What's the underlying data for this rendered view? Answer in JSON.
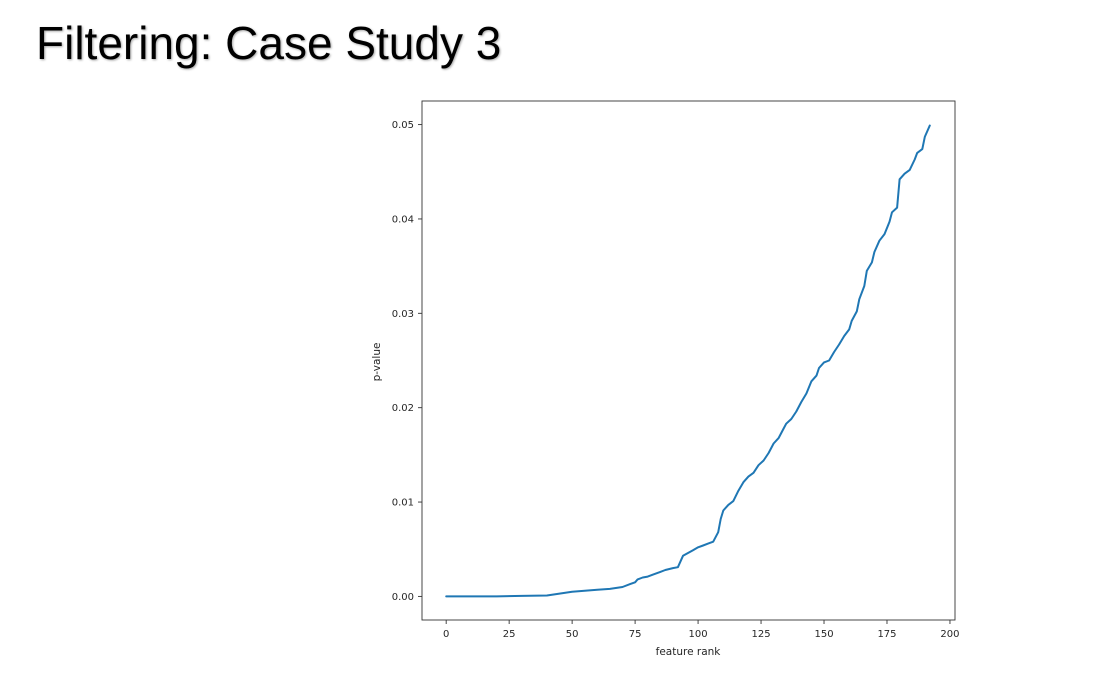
{
  "slide": {
    "title": "Filtering: Case Study 3"
  },
  "chart_data": {
    "type": "line",
    "xlabel": "feature rank",
    "ylabel": "p-value",
    "xlim": [
      -9.6,
      202
    ],
    "ylim": [
      -0.0025,
      0.0525
    ],
    "xticks": [
      0,
      25,
      50,
      75,
      100,
      125,
      150,
      175,
      200
    ],
    "xtick_labels": [
      "0",
      "25",
      "50",
      "75",
      "100",
      "125",
      "150",
      "175",
      "200"
    ],
    "yticks": [
      0.0,
      0.01,
      0.02,
      0.03,
      0.04,
      0.05
    ],
    "ytick_labels": [
      "0.00",
      "0.01",
      "0.02",
      "0.03",
      "0.04",
      "0.05"
    ],
    "grid": false,
    "series": [
      {
        "color": "#1f77b4",
        "x": [
          0,
          10,
          20,
          30,
          40,
          45,
          50,
          55,
          60,
          65,
          70,
          73,
          75,
          76,
          78,
          80,
          82,
          85,
          87,
          90,
          92,
          94,
          96,
          98,
          100,
          102,
          104,
          106,
          108,
          109,
          110,
          112,
          114,
          116,
          118,
          120,
          122,
          124,
          126,
          128,
          130,
          132,
          134,
          135,
          137,
          139,
          141,
          143,
          145,
          147,
          148,
          150,
          152,
          154,
          156,
          158,
          160,
          161,
          163,
          164,
          166,
          167,
          169,
          170,
          172,
          174,
          176,
          177,
          179,
          180,
          182,
          184,
          186,
          187,
          189,
          190,
          192
        ],
        "values": [
          0.0,
          0.0,
          0.0,
          5e-05,
          0.0001,
          0.0003,
          0.0005,
          0.0006,
          0.0007,
          0.0008,
          0.001,
          0.0013,
          0.0015,
          0.0018,
          0.002,
          0.0021,
          0.0023,
          0.0026,
          0.0028,
          0.003,
          0.0031,
          0.0043,
          0.0046,
          0.0049,
          0.0052,
          0.0054,
          0.0056,
          0.0058,
          0.0068,
          0.0082,
          0.0091,
          0.0097,
          0.0101,
          0.0112,
          0.0121,
          0.0127,
          0.0131,
          0.0139,
          0.0144,
          0.0152,
          0.0162,
          0.0168,
          0.0178,
          0.0183,
          0.0188,
          0.0196,
          0.0206,
          0.0215,
          0.0228,
          0.0234,
          0.0242,
          0.0248,
          0.025,
          0.0259,
          0.0267,
          0.0276,
          0.0283,
          0.0292,
          0.0302,
          0.0315,
          0.0329,
          0.0345,
          0.0354,
          0.0365,
          0.0377,
          0.0384,
          0.0397,
          0.0407,
          0.0412,
          0.0442,
          0.0448,
          0.0452,
          0.0463,
          0.047,
          0.0474,
          0.0487,
          0.0499
        ]
      }
    ]
  }
}
